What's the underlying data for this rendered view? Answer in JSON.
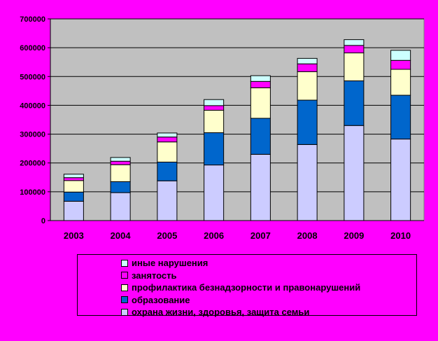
{
  "chart_data": {
    "type": "bar",
    "stacked": true,
    "categories": [
      "2003",
      "2004",
      "2005",
      "2006",
      "2007",
      "2008",
      "2009",
      "2010"
    ],
    "ylim": [
      0,
      700000
    ],
    "yticks": [
      0,
      100000,
      200000,
      300000,
      400000,
      500000,
      600000,
      700000
    ],
    "grid": true,
    "legend_position": "bottom",
    "series": [
      {
        "name": "охрана жизни, здоровья, защита семьи",
        "color": "#ccccff",
        "values": [
          67000,
          97000,
          138000,
          193000,
          230000,
          264000,
          330000,
          283000
        ]
      },
      {
        "name": "образование",
        "color": "#0066cc",
        "values": [
          32000,
          38000,
          65000,
          112000,
          125000,
          154000,
          155000,
          152000
        ]
      },
      {
        "name": "профилактика безнадзорности и правонарушений",
        "color": "#ffffcc",
        "values": [
          40000,
          59000,
          70000,
          78000,
          106000,
          99000,
          97000,
          90000
        ]
      },
      {
        "name": "занятость",
        "color": "#ff00ff",
        "values": [
          10000,
          12000,
          17000,
          16000,
          22000,
          27000,
          26000,
          31000
        ]
      },
      {
        "name": "иные нарушения",
        "color": "#ccffff",
        "values": [
          12000,
          13000,
          14000,
          21000,
          20000,
          19000,
          20000,
          35000
        ]
      }
    ]
  }
}
